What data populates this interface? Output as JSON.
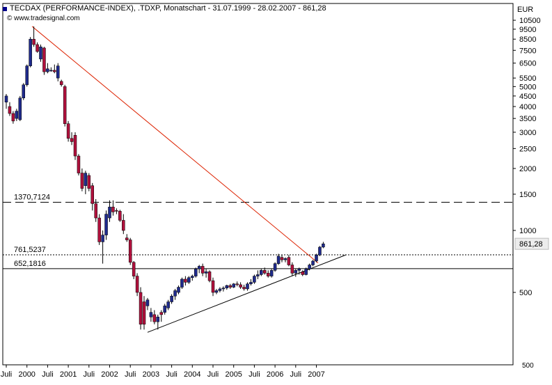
{
  "header": {
    "title": "TECDAX (PERFORMANCE-INDEX), .TDXP, Monatschart - 31.07.1999 - 28.02.2007 - 861,28",
    "source": "© www.tradesignal.com",
    "currency": "EUR"
  },
  "chart_data": {
    "type": "candlestick",
    "title": "TECDAX (PERFORMANCE-INDEX), .TDXP, Monatschart - 31.07.1999 - 28.02.2007 - 861,28",
    "y_axis": {
      "label": "EUR",
      "scale": "log",
      "ticks": [
        10500,
        9500,
        8500,
        7500,
        6500,
        5500,
        5000,
        4500,
        4000,
        3500,
        3000,
        2500,
        2000,
        1500,
        1000,
        500
      ],
      "bottom_label": "500",
      "range": [
        230,
        11500
      ]
    },
    "x_axis": {
      "labels": [
        {
          "label": "Juli",
          "month": 0
        },
        {
          "label": "2000",
          "month": 6
        },
        {
          "label": "Juli",
          "month": 12
        },
        {
          "label": "2001",
          "month": 18
        },
        {
          "label": "Juli",
          "month": 24
        },
        {
          "label": "2002",
          "month": 30
        },
        {
          "label": "Juli",
          "month": 36
        },
        {
          "label": "2003",
          "month": 42
        },
        {
          "label": "Juli",
          "month": 48
        },
        {
          "label": "2004",
          "month": 54
        },
        {
          "label": "Juli",
          "month": 60
        },
        {
          "label": "2005",
          "month": 66
        },
        {
          "label": "Juli",
          "month": 72
        },
        {
          "label": "2006",
          "month": 78
        },
        {
          "label": "Juli",
          "month": 84
        },
        {
          "label": "2007",
          "month": 90
        }
      ]
    },
    "last_value": "861,28",
    "horizontal_levels": [
      {
        "value": 1370.7124,
        "label": "1370,7124",
        "style": "dashed"
      },
      {
        "value": 761.5237,
        "label": "761,5237",
        "style": "dotted"
      },
      {
        "value": 652.1816,
        "label": "652,1816",
        "style": "solid"
      }
    ],
    "trendlines": [
      {
        "name": "downtrend",
        "color": "#dd2200",
        "points": [
          [
            7.5,
            9800
          ],
          [
            90.5,
            695
          ]
        ]
      },
      {
        "name": "uptrend",
        "color": "#000000",
        "points": [
          [
            41,
            320
          ],
          [
            98.5,
            760
          ]
        ]
      }
    ],
    "candles": [
      {
        "o": 4200,
        "h": 4600,
        "l": 3900,
        "c": 4500
      },
      {
        "o": 4000,
        "h": 4200,
        "l": 3600,
        "c": 3700
      },
      {
        "o": 3700,
        "h": 3800,
        "l": 3300,
        "c": 3400
      },
      {
        "o": 3500,
        "h": 3900,
        "l": 3400,
        "c": 3800
      },
      {
        "o": 3450,
        "h": 4500,
        "l": 3400,
        "c": 4400
      },
      {
        "o": 4400,
        "h": 5200,
        "l": 4300,
        "c": 5100
      },
      {
        "o": 5100,
        "h": 6400,
        "l": 5000,
        "c": 6300
      },
      {
        "o": 6300,
        "h": 8700,
        "l": 6200,
        "c": 8500
      },
      {
        "o": 8500,
        "h": 9800,
        "l": 7800,
        "c": 8000
      },
      {
        "o": 8000,
        "h": 8200,
        "l": 7300,
        "c": 7400
      },
      {
        "o": 6800,
        "h": 8000,
        "l": 6600,
        "c": 7800
      },
      {
        "o": 7700,
        "h": 7800,
        "l": 5700,
        "c": 5900
      },
      {
        "o": 5900,
        "h": 6500,
        "l": 5800,
        "c": 6100
      },
      {
        "o": 6000,
        "h": 6200,
        "l": 5900,
        "c": 6000
      },
      {
        "o": 6000,
        "h": 6400,
        "l": 5800,
        "c": 5900
      },
      {
        "o": 5500,
        "h": 6500,
        "l": 5300,
        "c": 6300
      },
      {
        "o": 5300,
        "h": 5400,
        "l": 5000,
        "c": 5100
      },
      {
        "o": 5000,
        "h": 5100,
        "l": 3200,
        "c": 3300
      },
      {
        "o": 3300,
        "h": 3400,
        "l": 2700,
        "c": 2800
      },
      {
        "o": 2800,
        "h": 3000,
        "l": 2600,
        "c": 2700
      },
      {
        "o": 2900,
        "h": 3000,
        "l": 2200,
        "c": 2300
      },
      {
        "o": 2300,
        "h": 2350,
        "l": 1850,
        "c": 1900
      },
      {
        "o": 1900,
        "h": 2000,
        "l": 1550,
        "c": 1600
      },
      {
        "o": 1650,
        "h": 1950,
        "l": 1500,
        "c": 1900
      },
      {
        "o": 1850,
        "h": 1900,
        "l": 1550,
        "c": 1600
      },
      {
        "o": 1650,
        "h": 1700,
        "l": 1250,
        "c": 1350
      },
      {
        "o": 1350,
        "h": 1420,
        "l": 1100,
        "c": 1150
      },
      {
        "o": 1150,
        "h": 1200,
        "l": 850,
        "c": 880
      },
      {
        "o": 880,
        "h": 1000,
        "l": 690,
        "c": 950
      },
      {
        "o": 950,
        "h": 1250,
        "l": 900,
        "c": 1200
      },
      {
        "o": 1150,
        "h": 1400,
        "l": 1100,
        "c": 1300
      },
      {
        "o": 1300,
        "h": 1400,
        "l": 1180,
        "c": 1230
      },
      {
        "o": 1250,
        "h": 1280,
        "l": 1200,
        "c": 1240
      },
      {
        "o": 1240,
        "h": 1260,
        "l": 1100,
        "c": 1120
      },
      {
        "o": 1120,
        "h": 1200,
        "l": 960,
        "c": 1000
      },
      {
        "o": 920,
        "h": 960,
        "l": 880,
        "c": 900
      },
      {
        "o": 900,
        "h": 920,
        "l": 680,
        "c": 700
      },
      {
        "o": 700,
        "h": 710,
        "l": 580,
        "c": 600
      },
      {
        "o": 600,
        "h": 620,
        "l": 480,
        "c": 500
      },
      {
        "o": 500,
        "h": 530,
        "l": 330,
        "c": 350
      },
      {
        "o": 450,
        "h": 480,
        "l": 330,
        "c": 350
      },
      {
        "o": 430,
        "h": 470,
        "l": 410,
        "c": 460
      },
      {
        "o": 380,
        "h": 420,
        "l": 360,
        "c": 400
      },
      {
        "o": 390,
        "h": 410,
        "l": 350,
        "c": 360
      },
      {
        "o": 360,
        "h": 390,
        "l": 330,
        "c": 380
      },
      {
        "o": 400,
        "h": 410,
        "l": 360,
        "c": 390
      },
      {
        "o": 400,
        "h": 440,
        "l": 390,
        "c": 430
      },
      {
        "o": 420,
        "h": 460,
        "l": 410,
        "c": 450
      },
      {
        "o": 450,
        "h": 490,
        "l": 440,
        "c": 480
      },
      {
        "o": 480,
        "h": 520,
        "l": 460,
        "c": 510
      },
      {
        "o": 500,
        "h": 540,
        "l": 490,
        "c": 530
      },
      {
        "o": 530,
        "h": 590,
        "l": 520,
        "c": 580
      },
      {
        "o": 580,
        "h": 600,
        "l": 540,
        "c": 560
      },
      {
        "o": 560,
        "h": 600,
        "l": 550,
        "c": 590
      },
      {
        "o": 590,
        "h": 610,
        "l": 570,
        "c": 600
      },
      {
        "o": 600,
        "h": 660,
        "l": 590,
        "c": 650
      },
      {
        "o": 650,
        "h": 680,
        "l": 620,
        "c": 670
      },
      {
        "o": 670,
        "h": 690,
        "l": 600,
        "c": 620
      },
      {
        "o": 620,
        "h": 650,
        "l": 590,
        "c": 630
      },
      {
        "o": 630,
        "h": 640,
        "l": 560,
        "c": 570
      },
      {
        "o": 570,
        "h": 590,
        "l": 480,
        "c": 500
      },
      {
        "o": 500,
        "h": 520,
        "l": 490,
        "c": 510
      },
      {
        "o": 510,
        "h": 530,
        "l": 500,
        "c": 520
      },
      {
        "o": 520,
        "h": 535,
        "l": 505,
        "c": 525
      },
      {
        "o": 525,
        "h": 545,
        "l": 515,
        "c": 540
      },
      {
        "o": 540,
        "h": 550,
        "l": 520,
        "c": 530
      },
      {
        "o": 530,
        "h": 555,
        "l": 525,
        "c": 550
      },
      {
        "o": 550,
        "h": 565,
        "l": 535,
        "c": 545
      },
      {
        "o": 545,
        "h": 560,
        "l": 520,
        "c": 530
      },
      {
        "o": 530,
        "h": 545,
        "l": 510,
        "c": 520
      },
      {
        "o": 520,
        "h": 560,
        "l": 510,
        "c": 550
      },
      {
        "o": 550,
        "h": 580,
        "l": 540,
        "c": 560
      },
      {
        "o": 560,
        "h": 610,
        "l": 550,
        "c": 600
      },
      {
        "o": 600,
        "h": 640,
        "l": 580,
        "c": 610
      },
      {
        "o": 610,
        "h": 650,
        "l": 600,
        "c": 640
      },
      {
        "o": 640,
        "h": 660,
        "l": 610,
        "c": 620
      },
      {
        "o": 620,
        "h": 640,
        "l": 590,
        "c": 600
      },
      {
        "o": 600,
        "h": 650,
        "l": 590,
        "c": 640
      },
      {
        "o": 640,
        "h": 700,
        "l": 630,
        "c": 690
      },
      {
        "o": 690,
        "h": 770,
        "l": 680,
        "c": 750
      },
      {
        "o": 740,
        "h": 760,
        "l": 700,
        "c": 720
      },
      {
        "o": 720,
        "h": 740,
        "l": 700,
        "c": 730
      },
      {
        "o": 740,
        "h": 760,
        "l": 670,
        "c": 680
      },
      {
        "o": 680,
        "h": 700,
        "l": 600,
        "c": 620
      },
      {
        "o": 620,
        "h": 650,
        "l": 595,
        "c": 640
      },
      {
        "o": 640,
        "h": 660,
        "l": 610,
        "c": 650
      },
      {
        "o": 630,
        "h": 640,
        "l": 600,
        "c": 610
      },
      {
        "o": 610,
        "h": 660,
        "l": 605,
        "c": 650
      },
      {
        "o": 650,
        "h": 690,
        "l": 640,
        "c": 680
      },
      {
        "o": 680,
        "h": 720,
        "l": 670,
        "c": 710
      },
      {
        "o": 710,
        "h": 770,
        "l": 700,
        "c": 760
      },
      {
        "o": 760,
        "h": 840,
        "l": 750,
        "c": 830
      },
      {
        "o": 830,
        "h": 880,
        "l": 820,
        "c": 861.28
      }
    ]
  },
  "colors": {
    "up": "#1f2a8c",
    "down": "#b0103c",
    "grid": "#000000",
    "panel": "#ffffff"
  }
}
